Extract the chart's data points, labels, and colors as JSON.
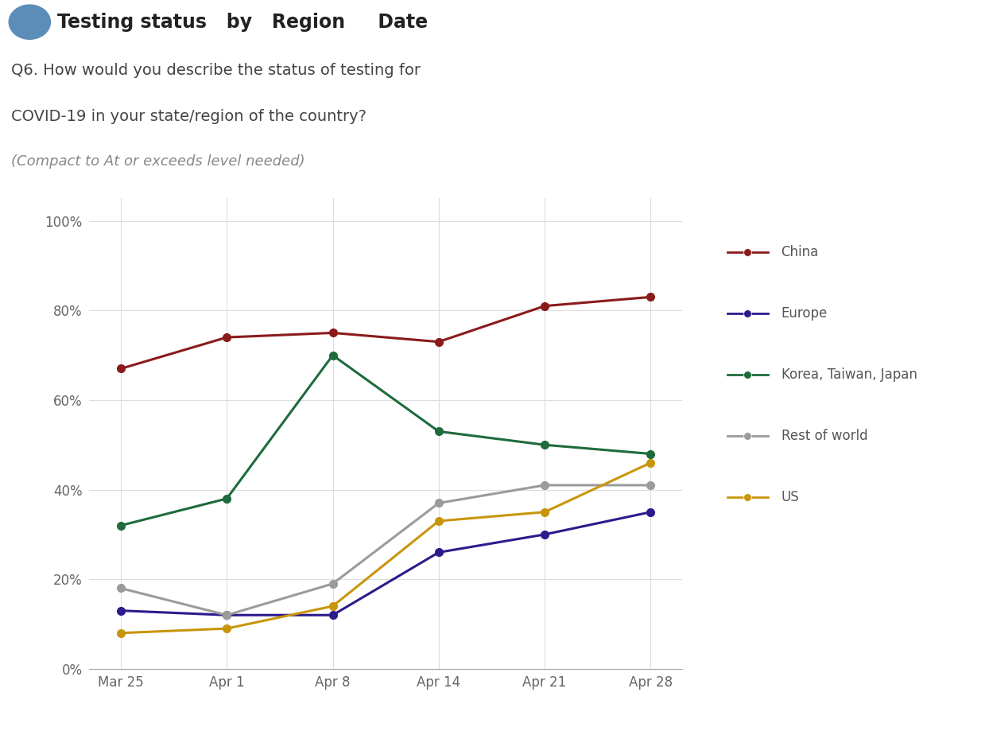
{
  "title_bar": "Testing status   by   Region     Date",
  "question_line1": "Q6. How would you describe the status of testing for",
  "question_line2": "COVID-19 in your state/region of the country?",
  "question_line3": "(Compact to At or exceeds level needed)",
  "x_labels": [
    "Mar 25",
    "Apr 1",
    "Apr 8",
    "Apr 14",
    "Apr 21",
    "Apr 28"
  ],
  "series": [
    {
      "name": "China",
      "color": "#8B1A1A",
      "values": [
        0.67,
        0.74,
        0.75,
        0.73,
        0.81,
        0.83
      ]
    },
    {
      "name": "Europe",
      "color": "#2B1B8B",
      "values": [
        0.13,
        0.12,
        0.12,
        0.26,
        0.3,
        0.35
      ]
    },
    {
      "name": "Korea, Taiwan, Japan",
      "color": "#1E6B3C",
      "values": [
        0.32,
        0.38,
        0.7,
        0.53,
        0.5,
        0.48
      ]
    },
    {
      "name": "Rest of world",
      "color": "#9B9B9B",
      "values": [
        0.18,
        0.12,
        0.19,
        0.37,
        0.41,
        0.41
      ]
    },
    {
      "name": "US",
      "color": "#C8960C",
      "values": [
        0.08,
        0.09,
        0.14,
        0.33,
        0.35,
        0.46
      ]
    }
  ],
  "ylim": [
    0,
    1.05
  ],
  "yticks": [
    0.0,
    0.2,
    0.4,
    0.6,
    0.8,
    1.0
  ],
  "ytick_labels": [
    "0%",
    "20%",
    "40%",
    "60%",
    "80%",
    "100%"
  ],
  "background_color": "#FFFFFF",
  "grid_color": "#DDDDDD",
  "circle_color": "#5B8DB8",
  "separator_color": "#CCCCCC",
  "marker_size": 7,
  "line_width": 2.2,
  "fig_width": 12.44,
  "fig_height": 9.24
}
